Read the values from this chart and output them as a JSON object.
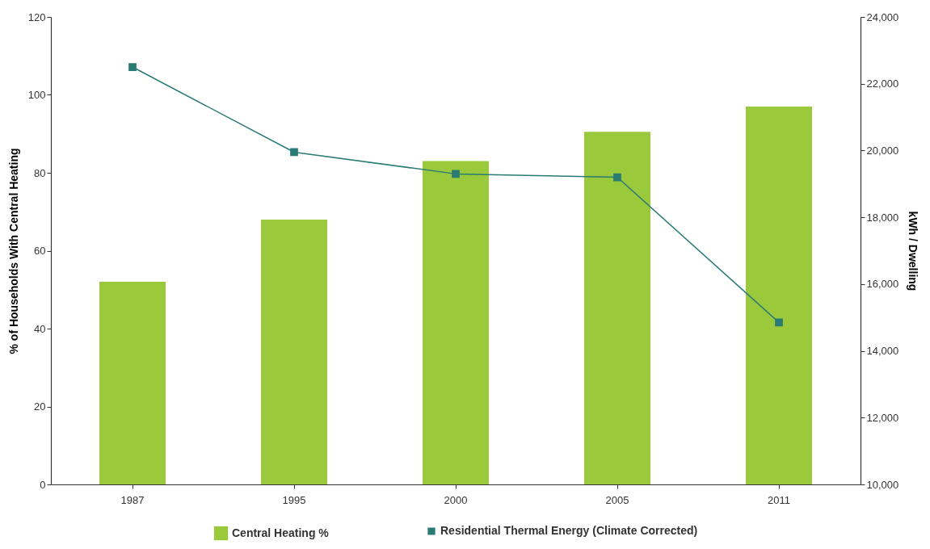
{
  "chart_data": {
    "type": "bar",
    "ylabel": "% of Households With Central Heating",
    "y2label": "kWh / Dwelling",
    "categories": [
      "1987",
      "1995",
      "2000",
      "2005",
      "2011"
    ],
    "series": [
      {
        "name": "Central Heating %",
        "color": "#9bc93c",
        "values": [
          52,
          68,
          83,
          90.5,
          97
        ]
      },
      {
        "name": "Residential Thermal Energy (Climate Corrected)",
        "type": "line",
        "axis": "y2",
        "color": "#2a7b74",
        "marker": "square",
        "values": [
          22500,
          19950,
          19300,
          19200,
          14850
        ]
      }
    ],
    "ylim": [
      0,
      120
    ],
    "yticks": [
      0,
      20,
      40,
      60,
      80,
      100,
      120
    ],
    "y2lim": [
      10000,
      24000
    ],
    "y2ticks": [
      {
        "value": 10000,
        "label": "10,000"
      },
      {
        "value": 12000,
        "label": "12,000"
      },
      {
        "value": 14000,
        "label": "14,000"
      },
      {
        "value": 16000,
        "label": "16,000"
      },
      {
        "value": 18000,
        "label": "18,000"
      },
      {
        "value": 20000,
        "label": "20,000"
      },
      {
        "value": 22000,
        "label": "22,000"
      },
      {
        "value": 24000,
        "label": "24,000"
      }
    ],
    "legend": "bottom",
    "grid": false
  }
}
